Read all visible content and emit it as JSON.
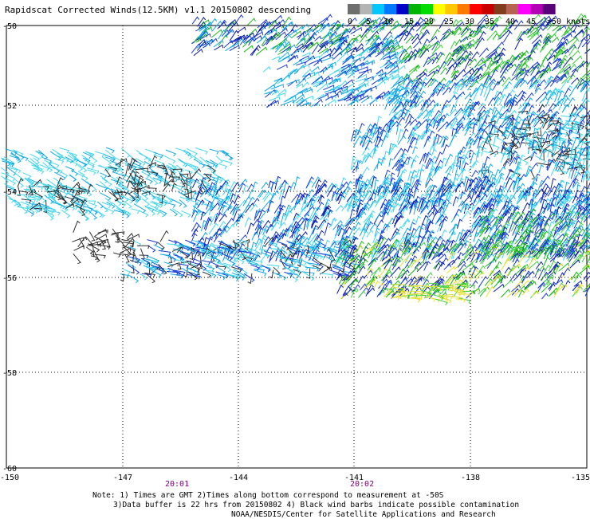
{
  "title": "Rapidscat Corrected Winds(12.5KM) v1.1 20150802 descending",
  "legend": {
    "labels": [
      "0",
      "5",
      "10",
      "15",
      "20",
      "25",
      "30",
      "35",
      "40",
      "45",
      ">50 knots"
    ],
    "colors": [
      "#6e6e6e",
      "#b4b4b4",
      "#00c8ff",
      "#0078ff",
      "#0000c8",
      "#00b400",
      "#00dc00",
      "#ffff00",
      "#ffc800",
      "#ff7800",
      "#ff0000",
      "#c80000",
      "#823c1e",
      "#b46450",
      "#ff00ff",
      "#b400b4",
      "#5a0078"
    ]
  },
  "map": {
    "lat_labels": [
      "-50",
      "-52",
      "-54",
      "-56",
      "-58",
      "-60"
    ],
    "lon_labels": [
      "-150",
      "-147",
      "-144",
      "-141",
      "-138",
      "-135"
    ],
    "time_labels": [
      "20:01",
      "20:02"
    ],
    "lat_range": [
      -60,
      -50
    ],
    "lon_range": [
      -150,
      -135
    ],
    "gridlines": true
  },
  "notes": [
    "Note: 1) Times are GMT 2)Times along bottom correspond to measurement at -50S",
    "3)Data buffer is 22 hrs from 20150802 4) Black wind barbs indicate possible contamination",
    "NOAA/NESDIS/Center for Satellite Applications and Research"
  ]
}
